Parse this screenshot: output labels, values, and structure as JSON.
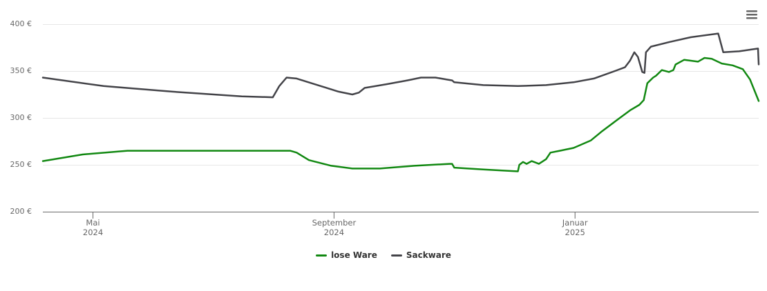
{
  "chart_data": {
    "type": "line",
    "xlim": [
      2024.264,
      2025.254
    ],
    "xticks": [
      {
        "value": 2024.3333,
        "label": "Mai\n2024"
      },
      {
        "value": 2024.6667,
        "label": "September\n2024"
      },
      {
        "value": 2025.0,
        "label": "Januar\n2025"
      }
    ],
    "ylim": [
      200,
      400
    ],
    "yticks": [
      {
        "value": 200,
        "label": "200 €"
      },
      {
        "value": 250,
        "label": "250 €"
      },
      {
        "value": 300,
        "label": "300 €"
      },
      {
        "value": 350,
        "label": "350 €"
      },
      {
        "value": 400,
        "label": "400 €"
      }
    ],
    "grid": true,
    "legend": "bottom",
    "series": [
      {
        "name": "lose Ware",
        "color": "#118811",
        "x": [
          2024.264,
          2024.319,
          2024.381,
          2024.606,
          2024.615,
          2024.632,
          2024.663,
          2024.692,
          2024.73,
          2024.778,
          2024.826,
          2024.83,
          2024.833,
          2024.873,
          2024.921,
          2024.923,
          2024.928,
          2024.933,
          2024.94,
          2024.95,
          2024.96,
          2024.966,
          2024.979,
          2024.998,
          2025.022,
          2025.036,
          2025.055,
          2025.076,
          2025.089,
          2025.095,
          2025.1,
          2025.108,
          2025.112,
          2025.12,
          2025.13,
          2025.136,
          2025.139,
          2025.151,
          2025.17,
          2025.179,
          2025.189,
          2025.203,
          2025.218,
          2025.232,
          2025.242,
          2025.254
        ],
        "values": [
          254,
          261,
          265,
          265,
          263,
          255,
          249,
          246,
          246,
          249,
          251,
          251,
          247,
          245,
          243,
          250,
          253,
          251,
          254,
          251,
          256,
          263,
          265,
          268,
          276,
          285,
          296,
          308,
          314,
          319,
          337,
          343,
          345,
          351,
          349,
          351,
          357,
          362,
          360,
          364,
          363,
          358,
          356,
          352,
          341,
          318
        ]
      },
      {
        "name": "Sackware",
        "color": "#434348",
        "x": [
          2024.264,
          2024.348,
          2024.443,
          2024.539,
          2024.582,
          2024.591,
          2024.601,
          2024.615,
          2024.644,
          2024.673,
          2024.692,
          2024.701,
          2024.709,
          2024.74,
          2024.768,
          2024.787,
          2024.807,
          2024.83,
          2024.833,
          2024.873,
          2024.921,
          2024.96,
          2024.998,
          2025.026,
          2025.055,
          2025.069,
          2025.076,
          2025.082,
          2025.087,
          2025.093,
          2025.096,
          2025.098,
          2025.105,
          2025.131,
          2025.16,
          2025.198,
          2025.205,
          2025.227,
          2025.253,
          2025.254
        ],
        "values": [
          343,
          334,
          328,
          323,
          322,
          334,
          343,
          342,
          335,
          328,
          325,
          327,
          332,
          336,
          340,
          343,
          343,
          340,
          338,
          335,
          334,
          335,
          338,
          342,
          350,
          354,
          361,
          370,
          365,
          349,
          348,
          370,
          376,
          381,
          386,
          390,
          370,
          371,
          374,
          357
        ]
      }
    ]
  }
}
